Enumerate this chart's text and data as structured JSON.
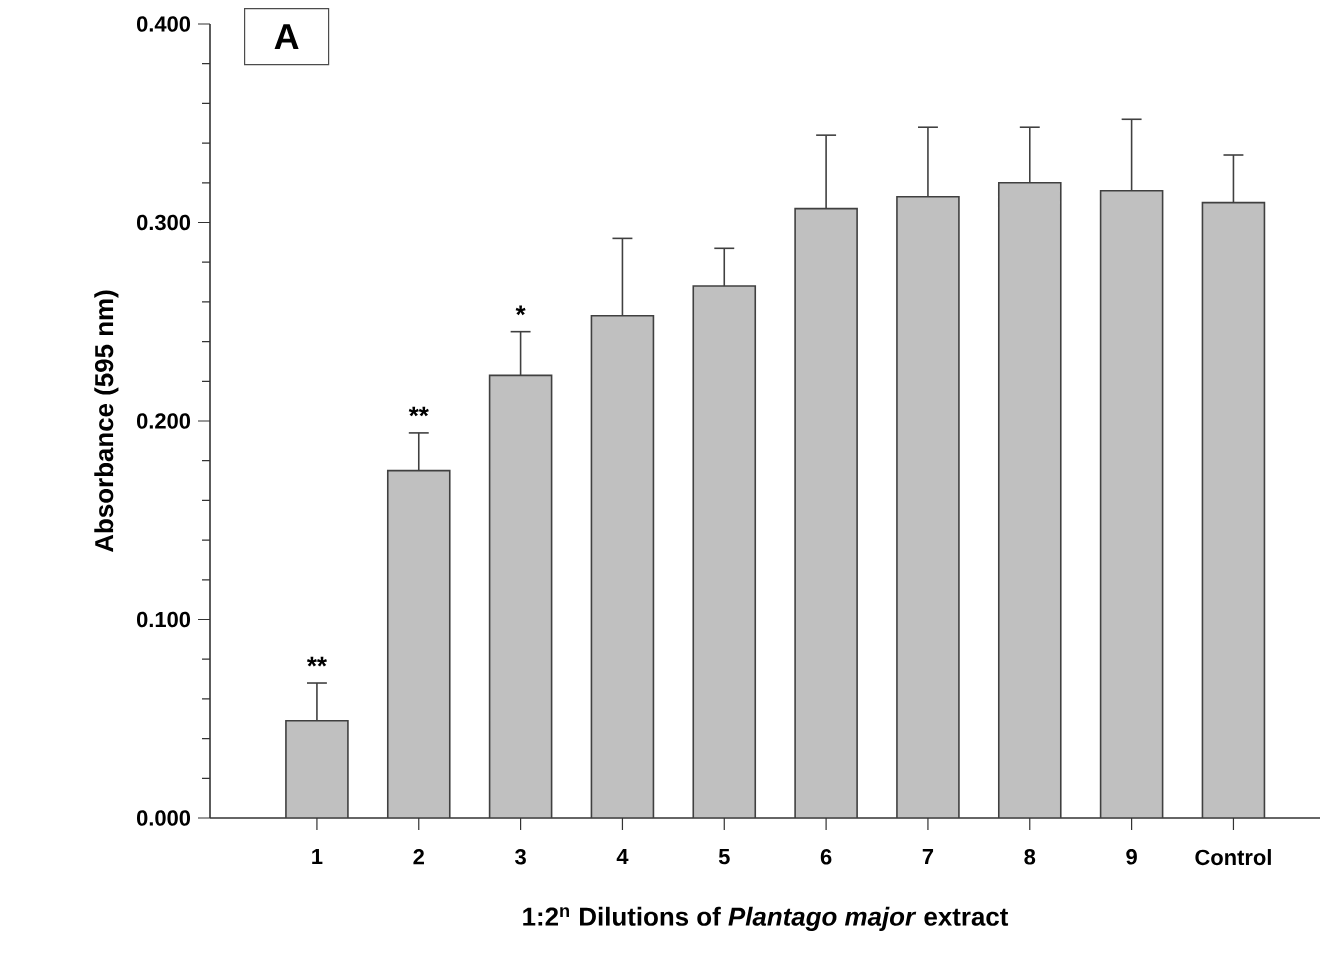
{
  "chart_data": {
    "type": "bar",
    "xlabel": "1:2$^{n}$ Dilutions of *Plantago major* extract",
    "ylabel": "Absorbance (595 nm)",
    "categories": [
      "1",
      "2",
      "3",
      "4",
      "5",
      "6",
      "7",
      "8",
      "9",
      "Control"
    ],
    "values": [
      0.049,
      0.175,
      0.223,
      0.253,
      0.268,
      0.307,
      0.313,
      0.32,
      0.316,
      0.31
    ],
    "errors": [
      [
        0.049,
        0.068
      ],
      [
        0.175,
        0.194
      ],
      [
        0.223,
        0.245
      ],
      [
        0.253,
        0.292
      ],
      [
        0.268,
        0.287
      ],
      [
        0.307,
        0.344
      ],
      [
        0.313,
        0.348
      ],
      [
        0.32,
        0.348
      ],
      [
        0.316,
        0.352
      ],
      [
        0.31,
        0.334
      ]
    ],
    "color": "#c0c0c0",
    "ylim": [
      0,
      0.4
    ],
    "yticks": [
      {
        "value": 0,
        "label": "0.000"
      },
      {
        "value": 0.1,
        "label": "0.100"
      },
      {
        "value": 0.2,
        "label": "0.200"
      },
      {
        "value": 0.3,
        "label": "0.300"
      },
      {
        "value": 0.4,
        "label": "0.400"
      }
    ],
    "annotations": [
      "A",
      {
        "text": "**",
        "x": "1",
        "y": 0.071
      },
      {
        "text": "**",
        "x": "2",
        "y": 0.197
      },
      {
        "text": "*",
        "x": "3",
        "y": 0.248
      }
    ]
  }
}
